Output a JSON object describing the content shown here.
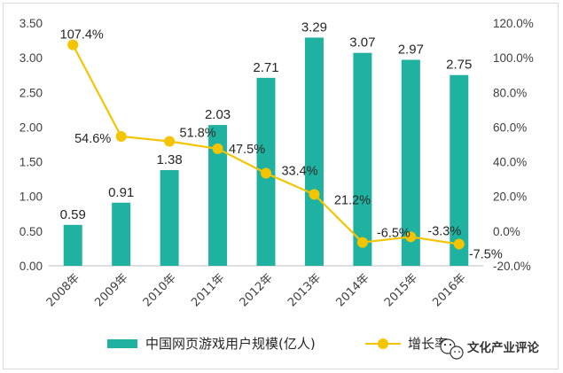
{
  "colors": {
    "bar": "#20B2A0",
    "line": "#F5C400",
    "axis": "#bfbfbf",
    "text": "#404040"
  },
  "chart_data": {
    "type": "bar",
    "categories": [
      "2008年",
      "2009年",
      "2010年",
      "2011年",
      "2012年",
      "2013年",
      "2014年",
      "2015年",
      "2016年"
    ],
    "series": [
      {
        "name": "中国网页游戏用户规模(亿人)",
        "type": "bar",
        "axis": "left",
        "values": [
          0.59,
          0.91,
          1.38,
          2.03,
          2.71,
          3.29,
          3.07,
          2.97,
          2.75
        ],
        "labels": [
          "0.59",
          "0.91",
          "1.38",
          "2.03",
          "2.71",
          "3.29",
          "3.07",
          "2.97",
          "2.75"
        ]
      },
      {
        "name": "增长率",
        "type": "line",
        "axis": "right",
        "values": [
          107.4,
          54.6,
          51.8,
          47.5,
          33.4,
          21.2,
          -6.5,
          -3.3,
          -7.5
        ],
        "labels": [
          "107.4%",
          "54.6%",
          "51.8%",
          "47.5%",
          "33.4%",
          "21.2%",
          "-6.5%",
          "-3.3%",
          "-7.5%"
        ]
      }
    ],
    "left_axis": {
      "ylim": [
        0,
        3.5
      ],
      "ticks": [
        "0.00",
        "0.50",
        "1.00",
        "1.50",
        "2.00",
        "2.50",
        "3.00",
        "3.50"
      ]
    },
    "right_axis": {
      "ylim": [
        -20,
        120
      ],
      "ticks": [
        "-20.0%",
        "0.0%",
        "20.0%",
        "40.0%",
        "60.0%",
        "80.0%",
        "100.0%",
        "120.0%"
      ]
    },
    "grid": false,
    "legend": "bottom"
  },
  "watermark": {
    "text": "文化产业评论",
    "icon": "wechat-icon"
  }
}
